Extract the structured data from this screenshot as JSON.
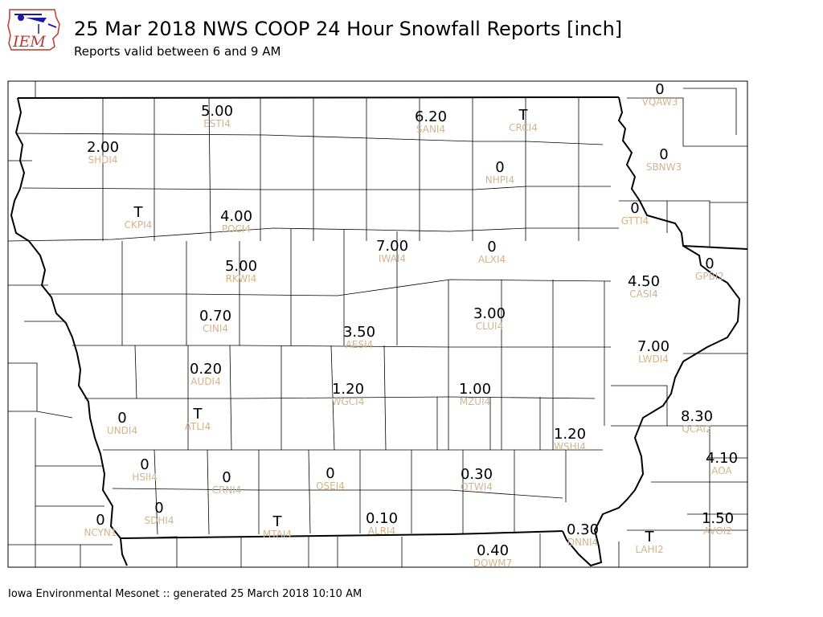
{
  "header": {
    "logo_text": "IEM",
    "title": "25 Mar 2018 NWS COOP 24 Hour Snowfall Reports [inch]",
    "subtitle": "Reports valid between 6 and 9 AM"
  },
  "colors": {
    "value_text": "#000000",
    "station_text": "#d2b48c",
    "logo_blue": "#1a1aa6",
    "logo_red": "#c0392b"
  },
  "reports": [
    {
      "value": "5.00",
      "station": "ESTI4"
    },
    {
      "value": "6.20",
      "station": "SANI4"
    },
    {
      "value": "T",
      "station": "CRCI4"
    },
    {
      "value": "0",
      "station": "VQAW3"
    },
    {
      "value": "2.00",
      "station": "SHDI4"
    },
    {
      "value": "0",
      "station": "NHPI4"
    },
    {
      "value": "0",
      "station": "SBNW3"
    },
    {
      "value": "T",
      "station": "CKPI4"
    },
    {
      "value": "4.00",
      "station": "POCI4"
    },
    {
      "value": "0",
      "station": "GTTI4"
    },
    {
      "value": "7.00",
      "station": "IWAI4"
    },
    {
      "value": "0",
      "station": "ALXI4"
    },
    {
      "value": "5.00",
      "station": "RKWI4"
    },
    {
      "value": "0",
      "station": "GPBI2"
    },
    {
      "value": "4.50",
      "station": "CASI4"
    },
    {
      "value": "0.70",
      "station": "CINI4"
    },
    {
      "value": "3.00",
      "station": "CLUI4"
    },
    {
      "value": "3.50",
      "station": "AESI4"
    },
    {
      "value": "7.00",
      "station": "LWDI4"
    },
    {
      "value": "0.20",
      "station": "AUDI4"
    },
    {
      "value": "1.20",
      "station": "WGCI4"
    },
    {
      "value": "1.00",
      "station": "MZUI4"
    },
    {
      "value": "T",
      "station": "ATLI4"
    },
    {
      "value": "0",
      "station": "UNDI4"
    },
    {
      "value": "8.30",
      "station": "QCAI2"
    },
    {
      "value": "1.20",
      "station": "WSHI4"
    },
    {
      "value": "0",
      "station": "HSII4"
    },
    {
      "value": "0",
      "station": "CRNI4"
    },
    {
      "value": "0",
      "station": "OSEI4"
    },
    {
      "value": "0.30",
      "station": "OTWI4"
    },
    {
      "value": "4.10",
      "station": "AOA"
    },
    {
      "value": "0",
      "station": "SDHI4"
    },
    {
      "value": "0",
      "station": "NCYN1"
    },
    {
      "value": "T",
      "station": "MTAI4"
    },
    {
      "value": "0.10",
      "station": "ALRI4"
    },
    {
      "value": "0.30",
      "station": "DNNI4"
    },
    {
      "value": "T",
      "station": "LAHI2"
    },
    {
      "value": "1.50",
      "station": "AVOI2"
    },
    {
      "value": "0.40",
      "station": "DOWM7"
    }
  ],
  "footer": {
    "text": "Iowa Environmental Mesonet :: generated 25 March 2018 10:10 AM"
  }
}
